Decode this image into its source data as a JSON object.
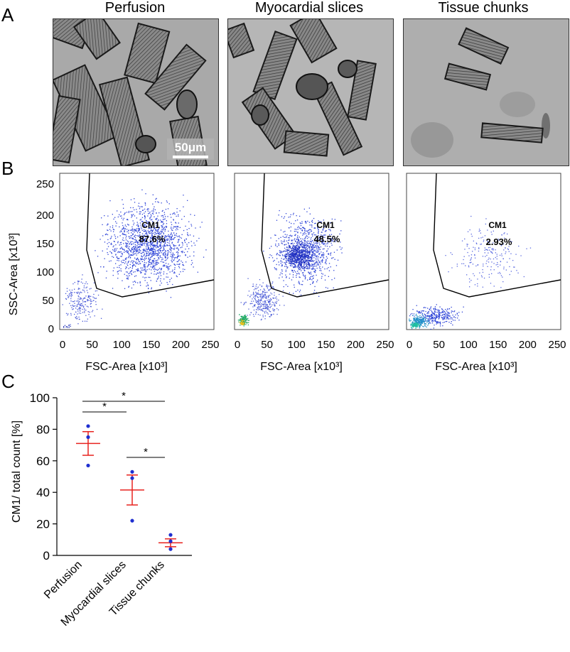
{
  "panel_labels": {
    "a": "A",
    "b": "B",
    "c": "C"
  },
  "columns": [
    "Perfusion",
    "Myocardial slices",
    "Tissue chunks"
  ],
  "scale_bar": "50μm",
  "flow": {
    "gate_label": "CM1",
    "percentages": [
      "87.6%",
      "48.5%",
      "2.93%"
    ],
    "x_label": "FSC-Area [x10³]",
    "y_label": "SSC-Area [x10³]",
    "ticks": [
      "0",
      "50",
      "100",
      "150",
      "200",
      "250"
    ],
    "y_ticks": [
      "0",
      "50",
      "100",
      "150",
      "200",
      "250"
    ]
  },
  "chart_data": {
    "type": "scatter",
    "ylabel": "CM1/ total count [%]",
    "ylim": [
      0,
      100
    ],
    "y_ticks": [
      "0",
      "20",
      "40",
      "60",
      "80",
      "100"
    ],
    "categories": [
      "Perfusion",
      "Myocardial slices",
      "Tissue chunks"
    ],
    "points": [
      [
        82,
        75,
        57
      ],
      [
        53,
        49,
        22
      ],
      [
        13,
        9,
        4
      ]
    ],
    "mean": [
      71,
      41.5,
      8
    ],
    "sem": [
      7.5,
      9.5,
      2.5
    ],
    "significance": [
      {
        "from": 0,
        "to": 1,
        "label": "*"
      },
      {
        "from": 0,
        "to": 2,
        "label": "*"
      },
      {
        "from": 1,
        "to": 2,
        "label": "*"
      }
    ],
    "colors": {
      "points": "#1f2fd0",
      "mean": "#e8231f"
    }
  }
}
